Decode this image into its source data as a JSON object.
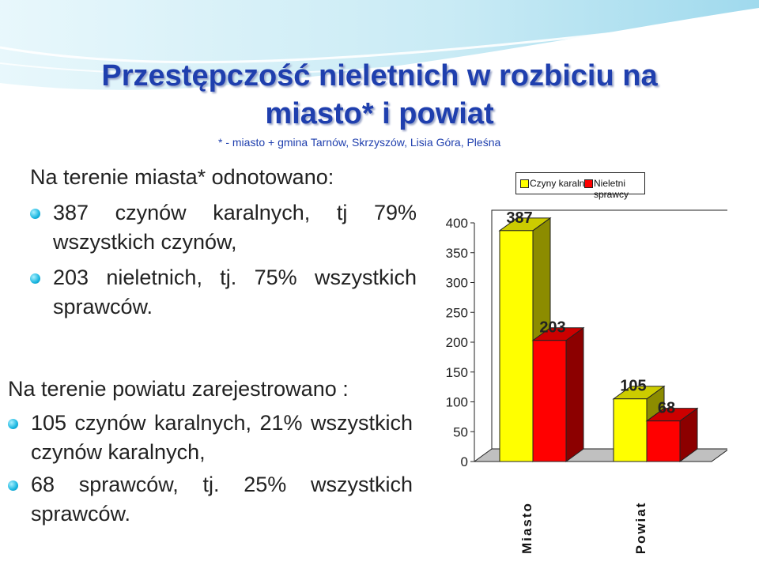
{
  "header": {
    "title_line1": "Przestępczość nieletnich w rozbiciu na",
    "title_line2": "miasto* i powiat",
    "subtitle": "* - miasto + gmina Tarnów, Skrzyszów, Lisia Góra, Pleśna"
  },
  "city": {
    "heading": "Na terenie miasta* odnotowano:",
    "items": [
      "387 czynów karalnych, tj 79% wszystkich czynów,",
      "203 nieletnich, tj. 75% wszystkich sprawców."
    ]
  },
  "county": {
    "heading": "Na terenie powiatu zarejestrowano :",
    "items": [
      "105 czynów karalnych, 21% wszystkich czynów karalnych,",
      "68 sprawców, tj. 25% wszystkich sprawców."
    ]
  },
  "chart_data": {
    "type": "bar",
    "categories": [
      "Miasto",
      "Powiat"
    ],
    "series": [
      {
        "name": "Czyny karalne",
        "values": [
          387,
          105
        ],
        "color": "#ffff00"
      },
      {
        "name": "Nieletni sprawcy",
        "values": [
          203,
          68
        ],
        "color": "#ff0000"
      }
    ],
    "yticks": [
      "0",
      "50",
      "100",
      "150",
      "200",
      "250",
      "300",
      "350",
      "400"
    ],
    "ylim": [
      0,
      400
    ],
    "legend_position": "top-right",
    "data_labels": true,
    "grid": false
  },
  "colors": {
    "title": "#1f3fae",
    "bullet": "#19b6e0",
    "bar_yellow": "#ffff00",
    "bar_red": "#ff0000"
  }
}
